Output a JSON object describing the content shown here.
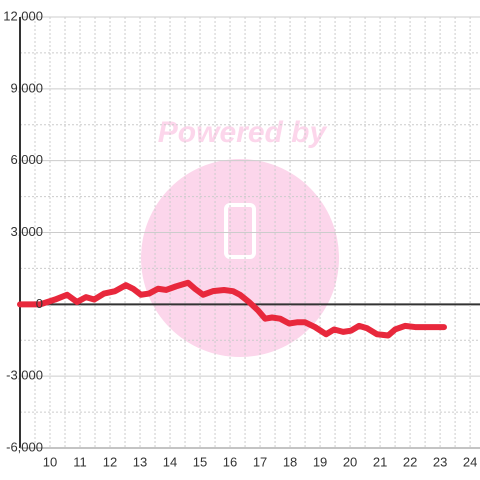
{
  "chart_data": {
    "type": "line",
    "watermark": "Powered by",
    "x": [
      9,
      9.67,
      10.17,
      10.57,
      10.9,
      11.2,
      11.47,
      11.8,
      12.17,
      12.53,
      12.77,
      13.03,
      13.3,
      13.6,
      13.87,
      14.2,
      14.6,
      14.83,
      15.1,
      15.43,
      15.8,
      16.1,
      16.33,
      16.63,
      16.93,
      17.17,
      17.4,
      17.67,
      17.97,
      18.23,
      18.5,
      18.83,
      19.2,
      19.47,
      19.77,
      20.03,
      20.3,
      20.57,
      20.9,
      21.27,
      21.5,
      21.83,
      22.17,
      23.13
    ],
    "values": [
      0,
      0,
      200,
      400,
      100,
      300,
      200,
      450,
      550,
      800,
      650,
      400,
      450,
      650,
      600,
      750,
      900,
      650,
      400,
      550,
      600,
      550,
      400,
      100,
      -250,
      -600,
      -550,
      -600,
      -800,
      -750,
      -750,
      -950,
      -1250,
      -1050,
      -1150,
      -1100,
      -900,
      -1000,
      -1250,
      -1300,
      -1050,
      -900,
      -950,
      -950
    ],
    "color": "#e8283c",
    "xlim": [
      9,
      24.33
    ],
    "xticks": [
      10,
      11,
      12,
      13,
      14,
      15,
      16,
      17,
      18,
      19,
      20,
      21,
      22,
      23,
      24
    ],
    "ylim": [
      -6000,
      12000
    ],
    "yticks": [
      {
        "value": 12000,
        "label": "12,000"
      },
      {
        "value": 9000,
        "label": "9,000"
      },
      {
        "value": 6000,
        "label": "6,000"
      },
      {
        "value": 3000,
        "label": "3,000"
      },
      0,
      {
        "value": -3000,
        "label": "-3,000"
      },
      {
        "value": -6000,
        "label": "-6,000"
      }
    ],
    "grid": true
  }
}
